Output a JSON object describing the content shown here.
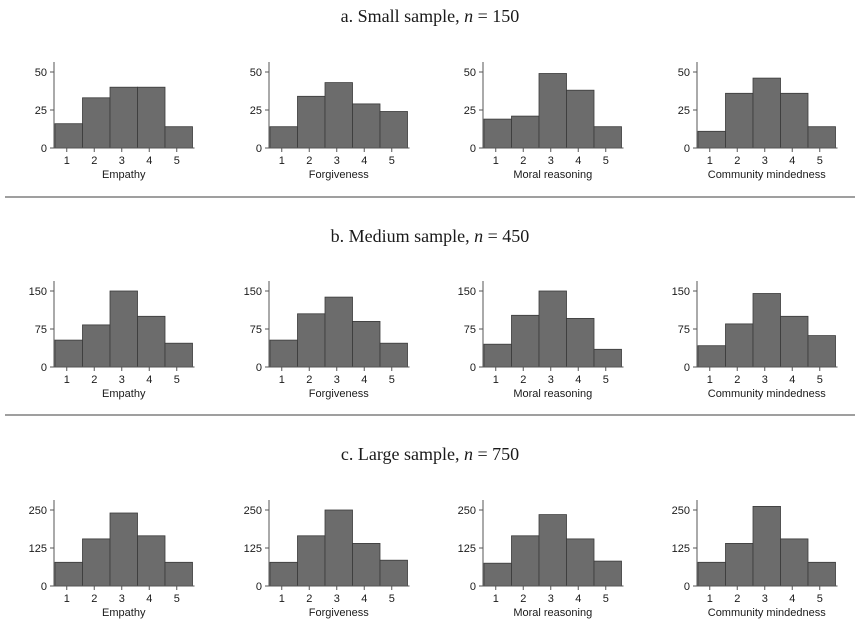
{
  "chart_data": [
    {
      "title": "a. Small sample, n = 150",
      "title_prefix": "a. Small sample, ",
      "title_var": "n",
      "title_suffix": " = 150",
      "panels": [
        {
          "type": "bar",
          "xlabel": "Empathy",
          "categories": [
            "1",
            "2",
            "3",
            "4",
            "5"
          ],
          "values": [
            16,
            33,
            40,
            40,
            14
          ],
          "yticks": [
            0,
            25,
            50
          ],
          "ylim": [
            0,
            50
          ]
        },
        {
          "type": "bar",
          "xlabel": "Forgiveness",
          "categories": [
            "1",
            "2",
            "3",
            "4",
            "5"
          ],
          "values": [
            14,
            34,
            43,
            29,
            24
          ],
          "yticks": [
            0,
            25,
            50
          ],
          "ylim": [
            0,
            50
          ]
        },
        {
          "type": "bar",
          "xlabel": "Moral reasoning",
          "categories": [
            "1",
            "2",
            "3",
            "4",
            "5"
          ],
          "values": [
            19,
            21,
            49,
            38,
            14
          ],
          "yticks": [
            0,
            25,
            50
          ],
          "ylim": [
            0,
            50
          ]
        },
        {
          "type": "bar",
          "xlabel": "Community mindedness",
          "categories": [
            "1",
            "2",
            "3",
            "4",
            "5"
          ],
          "values": [
            11,
            36,
            46,
            36,
            14
          ],
          "yticks": [
            0,
            25,
            50
          ],
          "ylim": [
            0,
            50
          ]
        }
      ]
    },
    {
      "title": "b. Medium sample, n = 450",
      "title_prefix": "b. Medium sample, ",
      "title_var": "n",
      "title_suffix": " = 450",
      "panels": [
        {
          "type": "bar",
          "xlabel": "Empathy",
          "categories": [
            "1",
            "2",
            "3",
            "4",
            "5"
          ],
          "values": [
            53,
            83,
            150,
            100,
            47
          ],
          "yticks": [
            0,
            75,
            150
          ],
          "ylim": [
            0,
            150
          ]
        },
        {
          "type": "bar",
          "xlabel": "Forgiveness",
          "categories": [
            "1",
            "2",
            "3",
            "4",
            "5"
          ],
          "values": [
            53,
            105,
            138,
            90,
            47
          ],
          "yticks": [
            0,
            75,
            150
          ],
          "ylim": [
            0,
            150
          ]
        },
        {
          "type": "bar",
          "xlabel": "Moral reasoning",
          "categories": [
            "1",
            "2",
            "3",
            "4",
            "5"
          ],
          "values": [
            45,
            102,
            150,
            96,
            35
          ],
          "yticks": [
            0,
            75,
            150
          ],
          "ylim": [
            0,
            150
          ]
        },
        {
          "type": "bar",
          "xlabel": "Community mindedness",
          "categories": [
            "1",
            "2",
            "3",
            "4",
            "5"
          ],
          "values": [
            42,
            85,
            145,
            100,
            62
          ],
          "yticks": [
            0,
            75,
            150
          ],
          "ylim": [
            0,
            150
          ]
        }
      ]
    },
    {
      "title": "c. Large sample, n = 750",
      "title_prefix": "c. Large sample, ",
      "title_var": "n",
      "title_suffix": " = 750",
      "panels": [
        {
          "type": "bar",
          "xlabel": "Empathy",
          "categories": [
            "1",
            "2",
            "3",
            "4",
            "5"
          ],
          "values": [
            78,
            155,
            240,
            165,
            78
          ],
          "yticks": [
            0,
            125,
            250
          ],
          "ylim": [
            0,
            250
          ]
        },
        {
          "type": "bar",
          "xlabel": "Forgiveness",
          "categories": [
            "1",
            "2",
            "3",
            "4",
            "5"
          ],
          "values": [
            78,
            165,
            250,
            140,
            85
          ],
          "yticks": [
            0,
            125,
            250
          ],
          "ylim": [
            0,
            250
          ]
        },
        {
          "type": "bar",
          "xlabel": "Moral reasoning",
          "categories": [
            "1",
            "2",
            "3",
            "4",
            "5"
          ],
          "values": [
            75,
            165,
            235,
            155,
            82
          ],
          "yticks": [
            0,
            125,
            250
          ],
          "ylim": [
            0,
            250
          ]
        },
        {
          "type": "bar",
          "xlabel": "Community mindedness",
          "categories": [
            "1",
            "2",
            "3",
            "4",
            "5"
          ],
          "values": [
            78,
            140,
            262,
            155,
            78
          ],
          "yticks": [
            0,
            125,
            250
          ],
          "ylim": [
            0,
            275
          ]
        }
      ]
    }
  ]
}
